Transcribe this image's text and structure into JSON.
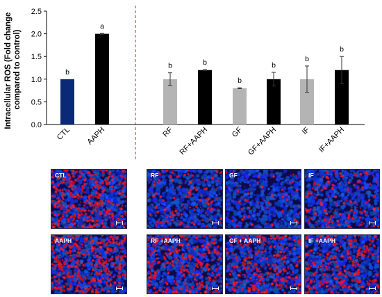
{
  "chart_data": {
    "type": "bar",
    "ylabel_lines": [
      "Intracellular ROS  (Fold change",
      "compared to control)"
    ],
    "ylim": [
      0,
      2.5
    ],
    "yticks": [
      "0.0",
      "0.5",
      "1.0",
      "1.5",
      "2.0",
      "2.5"
    ],
    "categories": [
      "CTL",
      "AAPH",
      "RF",
      "RF+AAPH",
      "GF",
      "GF+AAPH",
      "IF",
      "IF+AAPH"
    ],
    "values": [
      1.0,
      2.0,
      1.0,
      1.2,
      0.8,
      1.0,
      1.0,
      1.2
    ],
    "errors": [
      0.0,
      0.01,
      0.14,
      0.01,
      0.01,
      0.15,
      0.29,
      0.3
    ],
    "significance": [
      "b",
      "a",
      "b",
      "b",
      "b",
      "b",
      "b",
      "b"
    ],
    "bar_colors": [
      "#0a2a78",
      "#000000",
      "#b4b4b4",
      "#000000",
      "#b4b4b4",
      "#000000",
      "#b4b4b4",
      "#000000"
    ],
    "separator_color": "#d42020",
    "grid": false
  },
  "micrographs": {
    "panels": [
      {
        "label": "CTL",
        "red_density": 0.55
      },
      {
        "label": "RF",
        "red_density": 0.18
      },
      {
        "label": "GF",
        "red_density": 0.08
      },
      {
        "label": "IF",
        "red_density": 0.22
      },
      {
        "label": "AAPH",
        "red_density": 0.6
      },
      {
        "label": "RF +AAPH",
        "red_density": 0.45
      },
      {
        "label": "GF + AAPH",
        "red_density": 0.4
      },
      {
        "label": "IF +AAPH",
        "red_density": 0.4
      }
    ]
  }
}
